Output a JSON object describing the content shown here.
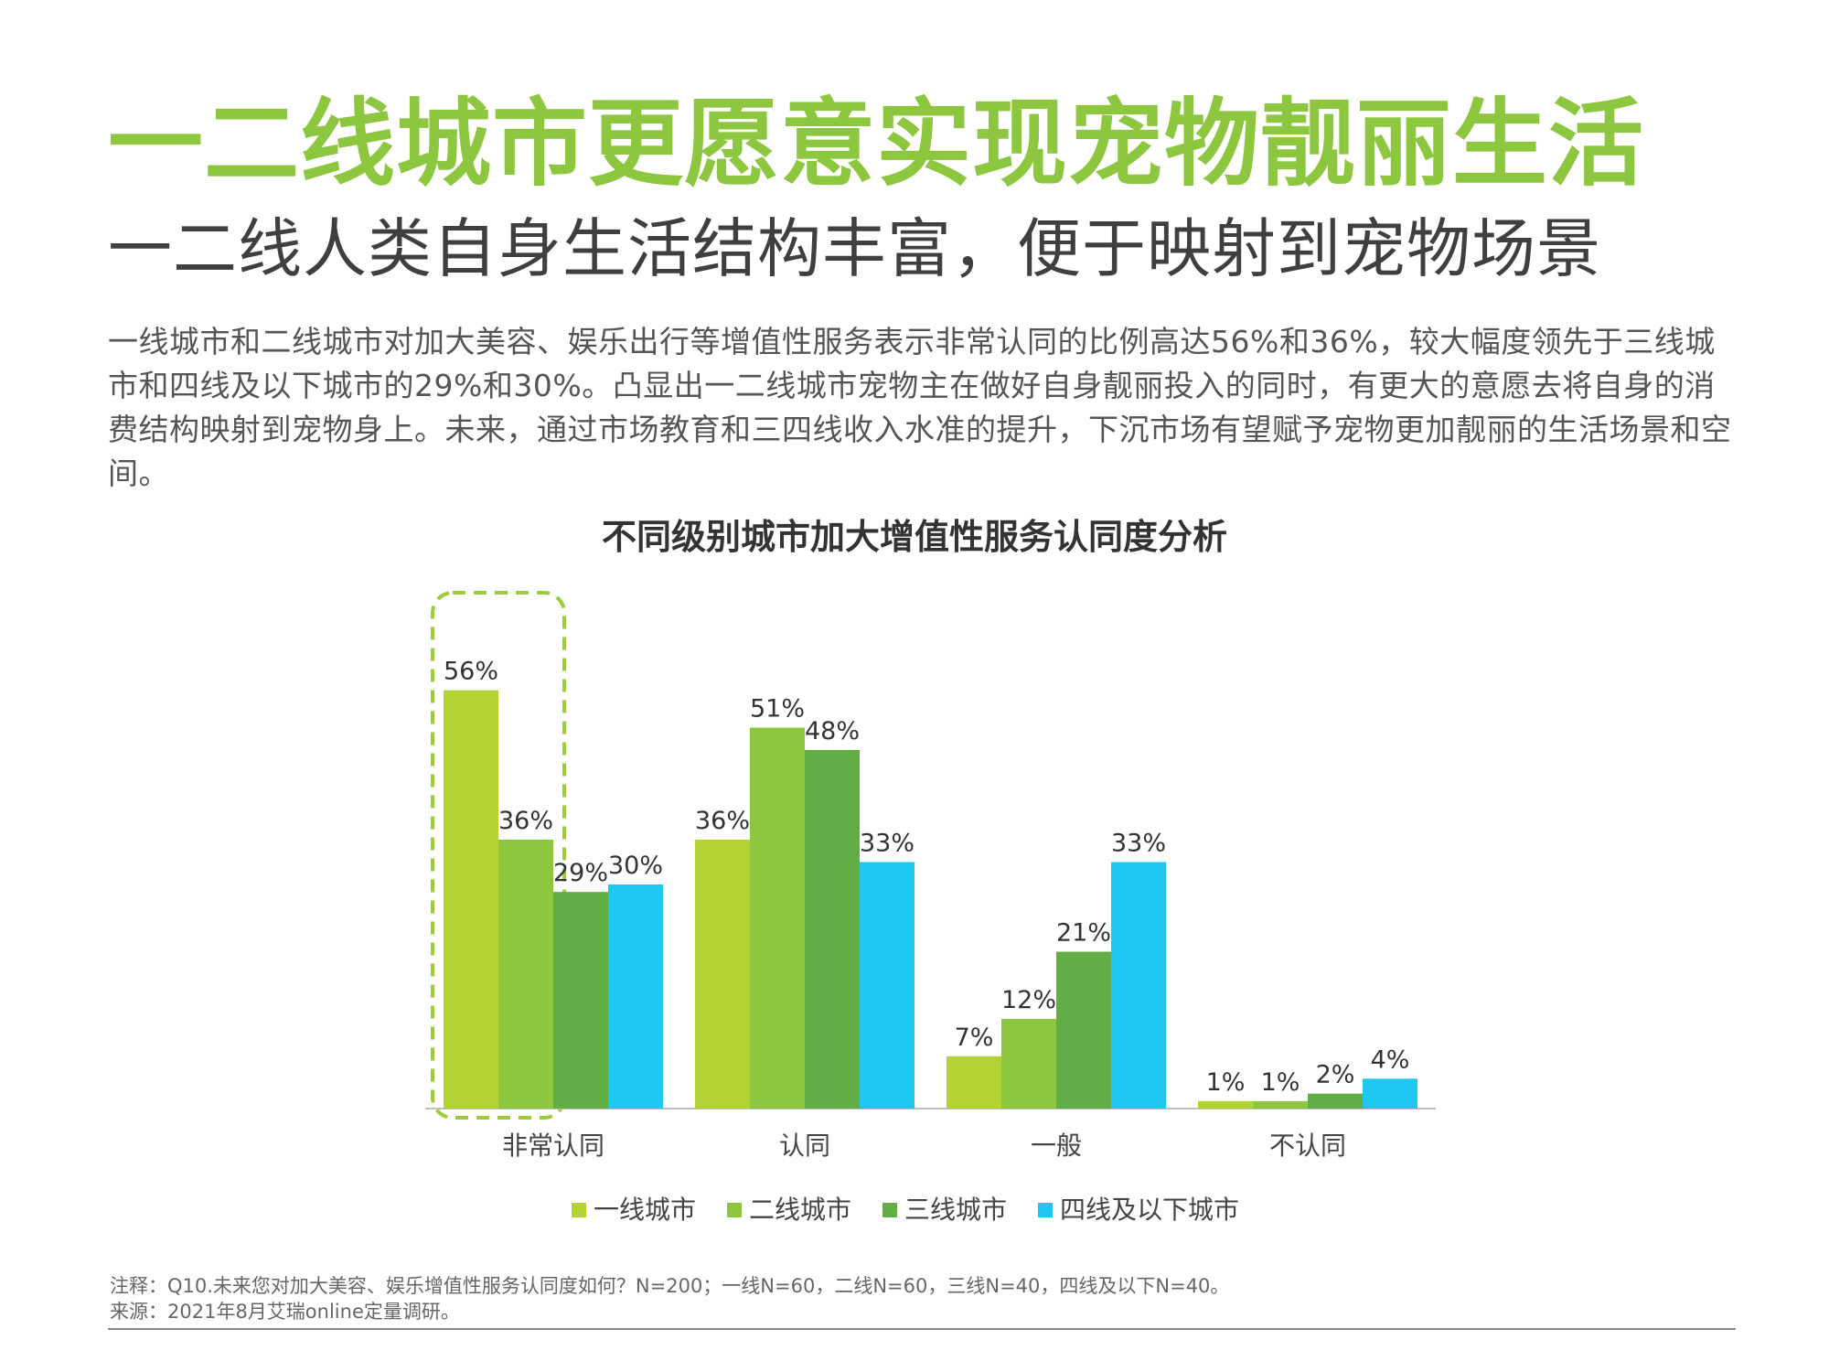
{
  "title": "一二线城市更愿意实现宠物靓丽生活",
  "subtitle": "一二线人类自身生活结构丰富，便于映射到宠物场景",
  "body": "一线城市和二线城市对加大美容、娱乐出行等增值性服务表示非常认同的比例高达56%和36%，较大幅度领先于三线城市和四线及以下城市的29%和30%。凸显出一二线城市宠物主在做好自身靓丽投入的同时，有更大的意愿去将自身的消费结构映射到宠物身上。未来，通过市场教育和三四线收入水准的提升，下沉市场有望赋予宠物更加靓丽的生活场景和空间。",
  "chart_data": {
    "type": "bar",
    "title": "不同级别城市加大增值性服务认同度分析",
    "categories": [
      "非常认同",
      "认同",
      "一般",
      "不认同"
    ],
    "series": [
      {
        "name": "一线城市",
        "values": [
          56,
          36,
          7,
          1
        ],
        "color": "#b3d234"
      },
      {
        "name": "二线城市",
        "values": [
          36,
          51,
          12,
          1
        ],
        "color": "#8dc63f"
      },
      {
        "name": "三线城市",
        "values": [
          29,
          48,
          21,
          2
        ],
        "color": "#62ad46"
      },
      {
        "name": "四线及以下城市",
        "values": [
          30,
          33,
          33,
          4
        ],
        "color": "#1ec8f0"
      }
    ],
    "value_suffix": "%",
    "ylim": [
      0,
      60
    ],
    "legend_position": "bottom",
    "highlight_category": "非常认同",
    "highlight_color": "#9ccc3c"
  },
  "footnote": {
    "note": "注释：Q10.未来您对加大美容、娱乐增值性服务认同度如何？N=200；一线N=60，二线N=60，三线N=40，四线及以下N=40。",
    "source": "来源：2021年8月艾瑞online定量调研。"
  }
}
